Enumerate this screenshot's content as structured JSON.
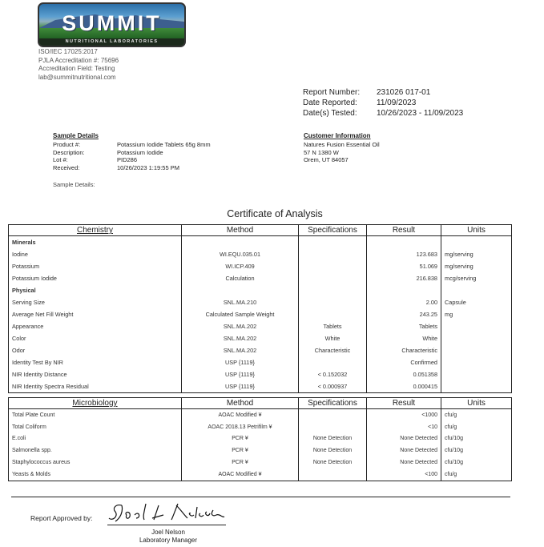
{
  "logo": {
    "word": "SUMMIT",
    "sub": "NUTRITIONAL LABORATORIES",
    "colors": {
      "sky": "#2c6fa8",
      "grass": "#1f5e22"
    }
  },
  "accreditation": [
    "ISO/IEC 17025:2017",
    "PJLA Accreditation #: 75696",
    "Accreditation Field: Testing",
    "lab@summitnutritional.com"
  ],
  "report": [
    {
      "label": "Report Number:",
      "value": "231026 017-01"
    },
    {
      "label": "Date Reported:",
      "value": "11/09/2023"
    },
    {
      "label": "Date(s) Tested:",
      "value": "10/26/2023 - 11/09/2023"
    }
  ],
  "sample": {
    "heading": "Sample Details",
    "rows": [
      {
        "k": "Product #:",
        "v": "Potassium Iodide Tablets 65g 8mm"
      },
      {
        "k": "Description:",
        "v": "Potassium Iodide"
      },
      {
        "k": "Lot #:",
        "v": "PID286"
      },
      {
        "k": "Received:",
        "v": "10/26/2023 1:19:55 PM"
      }
    ],
    "extra_label": "Sample Details:"
  },
  "customer": {
    "heading": "Customer Information",
    "lines": [
      "Natures Fusion Essential Oil",
      "57 N 1380 W",
      "Orem, UT 84057"
    ]
  },
  "title": "Certificate of Analysis",
  "chem": {
    "headers": [
      "Chemistry",
      "Method",
      "Specifications",
      "Result",
      "Units"
    ],
    "rows": [
      {
        "group": "Minerals"
      },
      {
        "c": [
          "Iodine",
          "WI.EQU.035.01",
          "",
          "123.683",
          "mg/serving"
        ]
      },
      {
        "c": [
          "Potassium",
          "WI.ICP.409",
          "",
          "51.069",
          "mg/serving"
        ]
      },
      {
        "c": [
          "Potassium Iodide",
          "Calculation",
          "",
          "216.838",
          "mcg/serving"
        ]
      },
      {
        "group": "Physical"
      },
      {
        "c": [
          "Serving Size",
          "SNL.MA.210",
          "",
          "2.00",
          "Capsule"
        ]
      },
      {
        "c": [
          "Average Net Fill Weight",
          "Calculated Sample Weight",
          "",
          "243.25",
          "mg"
        ]
      },
      {
        "c": [
          "Appearance",
          "SNL.MA.202",
          "Tablets",
          "Tablets",
          ""
        ]
      },
      {
        "c": [
          "Color",
          "SNL.MA.202",
          "White",
          "White",
          ""
        ]
      },
      {
        "c": [
          "Odor",
          "SNL.MA.202",
          "Characteristic",
          "Characteristic",
          ""
        ]
      },
      {
        "c": [
          "Identity Test By NIR",
          "USP {1119}",
          "",
          "Confirmed",
          ""
        ]
      },
      {
        "c": [
          "NIR Identity Distance",
          "USP {1119}",
          "< 0.152032",
          "0.051358",
          ""
        ]
      },
      {
        "c": [
          "NIR Identity Spectra Residual",
          "USP {1119}",
          "< 0.000937",
          "0.000415",
          ""
        ]
      }
    ]
  },
  "micro": {
    "headers": [
      "Microbiology",
      "Method",
      "Specifications",
      "Result",
      "Units"
    ],
    "rows": [
      {
        "c": [
          "Total Plate Count",
          "AOAC Modified ¥",
          "",
          "<1000",
          "cfu/g"
        ]
      },
      {
        "c": [
          "Total Coliform",
          "AOAC 2018.13 Petrifilm ¥",
          "",
          "<10",
          "cfu/g"
        ]
      },
      {
        "c": [
          "E.coli",
          "PCR ¥",
          "None Detection",
          "None Detected",
          "cfu/10g"
        ]
      },
      {
        "c": [
          "Salmonella spp.",
          "PCR ¥",
          "None Detection",
          "None Detected",
          "cfu/10g"
        ]
      },
      {
        "c": [
          "Staphylococcus aureus",
          "PCR ¥",
          "None Detection",
          "None Detected",
          "cfu/10g"
        ]
      },
      {
        "c": [
          "Yeasts & Molds",
          "AOAC Modified ¥",
          "",
          "<100",
          "cfu/g"
        ]
      }
    ]
  },
  "approval": {
    "label": "Report Approved by:",
    "signature": "Joel L Nelson",
    "name": "Joel Nelson",
    "role": "Laboratory Manager"
  }
}
